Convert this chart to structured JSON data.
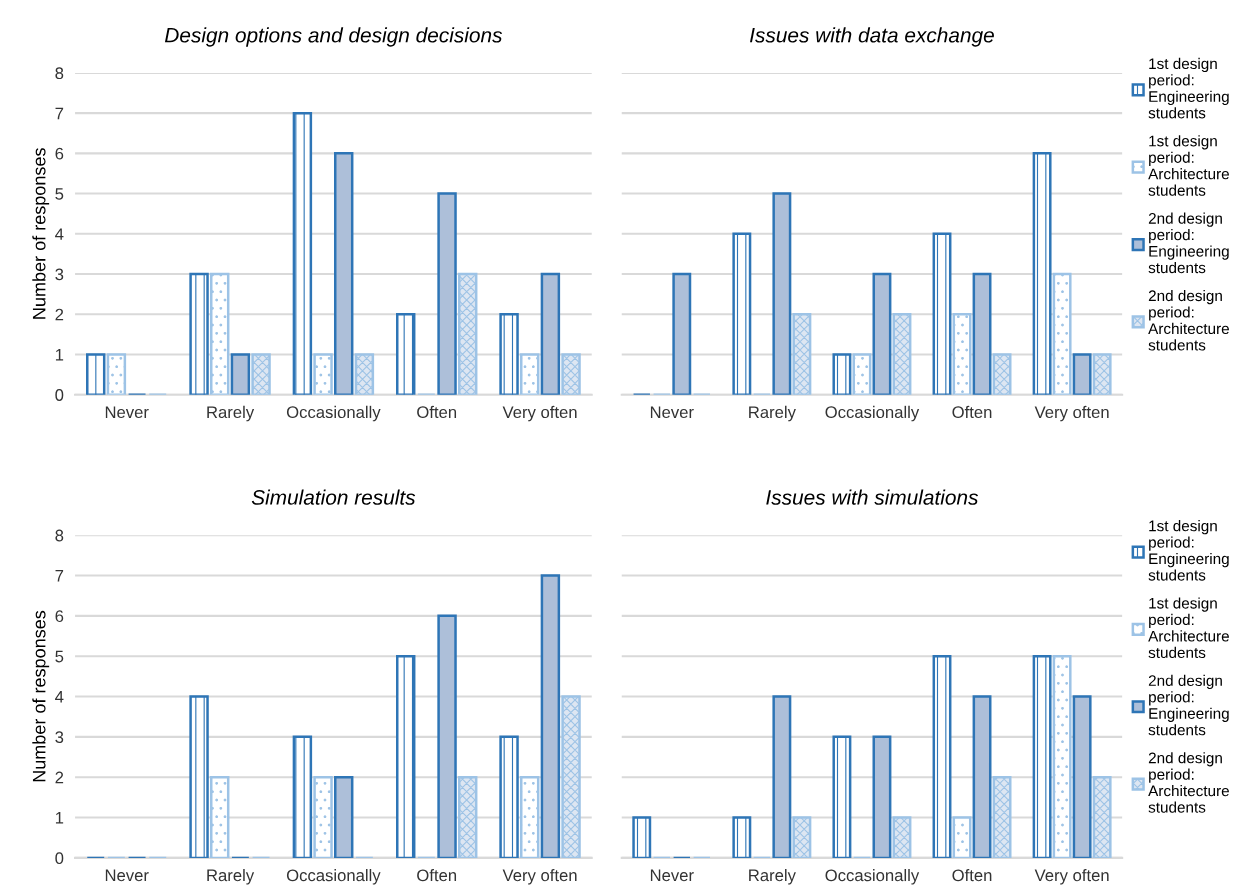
{
  "chart_data": [
    {
      "type": "bar",
      "title": "Design options and design decisions",
      "ylabel": "Number of responses",
      "categories": [
        "Never",
        "Rarely",
        "Occasionally",
        "Often",
        "Very often"
      ],
      "ylim": [
        0,
        8
      ],
      "yticks": [
        0,
        1,
        2,
        3,
        4,
        5,
        6,
        7,
        8
      ],
      "grid": "y",
      "legend": false,
      "series": [
        {
          "color": "#2e75b6",
          "values": [
            1,
            3,
            7,
            2,
            2
          ]
        },
        {
          "color": "#9dc3e6",
          "values": [
            1,
            3,
            1,
            0,
            1
          ]
        },
        {
          "color": "#2e75b6",
          "values": [
            0,
            1,
            6,
            5,
            3
          ]
        },
        {
          "color": "#9dc3e6",
          "values": [
            0,
            1,
            1,
            3,
            1
          ]
        }
      ]
    },
    {
      "type": "bar",
      "title": "Issues with data exchange",
      "categories": [
        "Never",
        "Rarely",
        "Occasionally",
        "Often",
        "Very often"
      ],
      "ylim": [
        0,
        8
      ],
      "yticks": [
        0,
        1,
        2,
        3,
        4,
        5,
        6,
        7,
        8
      ],
      "tick_labels": "x",
      "grid": "y",
      "legend": "right",
      "series": [
        {
          "name": "1st design\nperiod:\nEngineering\nstudents",
          "color": "#2e75b6",
          "values": [
            0,
            4,
            1,
            4,
            6
          ]
        },
        {
          "name": "1st design\nperiod:\nArchitecture\nstudents",
          "color": "#9dc3e6",
          "values": [
            0,
            0,
            1,
            2,
            3
          ]
        },
        {
          "name": "2nd design\nperiod:\nEngineering\nstudents",
          "color": "#2e75b6",
          "values": [
            3,
            5,
            3,
            3,
            1
          ]
        },
        {
          "name": "2nd design\nperiod:\nArchitecture\nstudents",
          "color": "#9dc3e6",
          "values": [
            0,
            2,
            2,
            1,
            1
          ]
        }
      ]
    },
    {
      "type": "bar",
      "title": "Simulation results",
      "ylabel": "Number of responses",
      "categories": [
        "Never",
        "Rarely",
        "Occasionally",
        "Often",
        "Very often"
      ],
      "ylim": [
        0,
        8
      ],
      "yticks": [
        0,
        1,
        2,
        3,
        4,
        5,
        6,
        7,
        8
      ],
      "grid": "y",
      "legend": false,
      "series": [
        {
          "color": "#2e75b6",
          "values": [
            0,
            4,
            3,
            5,
            3
          ]
        },
        {
          "color": "#9dc3e6",
          "values": [
            0,
            2,
            2,
            0,
            2
          ]
        },
        {
          "color": "#2e75b6",
          "values": [
            0,
            0,
            2,
            6,
            7
          ]
        },
        {
          "color": "#9dc3e6",
          "values": [
            0,
            0,
            0,
            2,
            4
          ]
        }
      ]
    },
    {
      "type": "bar",
      "title": "Issues with simulations",
      "categories": [
        "Never",
        "Rarely",
        "Occasionally",
        "Often",
        "Very often"
      ],
      "ylim": [
        0,
        8
      ],
      "yticks": [
        0,
        1,
        2,
        3,
        4,
        5,
        6,
        7,
        8
      ],
      "tick_labels": "x",
      "grid": "y",
      "legend": "right",
      "series": [
        {
          "name": "1st design\nperiod:\nEngineering\nstudents",
          "color": "#2e75b6",
          "values": [
            1,
            1,
            3,
            5,
            5
          ]
        },
        {
          "name": "1st design\nperiod:\nArchitecture\nstudents",
          "color": "#9dc3e6",
          "values": [
            0,
            0,
            0,
            1,
            5
          ]
        },
        {
          "name": "2nd design\nperiod:\nEngineering\nstudents",
          "color": "#2e75b6",
          "values": [
            0,
            4,
            3,
            4,
            4
          ]
        },
        {
          "name": "2nd design\nperiod:\nArchitecture\nstudents",
          "color": "#9dc3e6",
          "values": [
            0,
            1,
            1,
            2,
            2
          ]
        }
      ]
    }
  ]
}
